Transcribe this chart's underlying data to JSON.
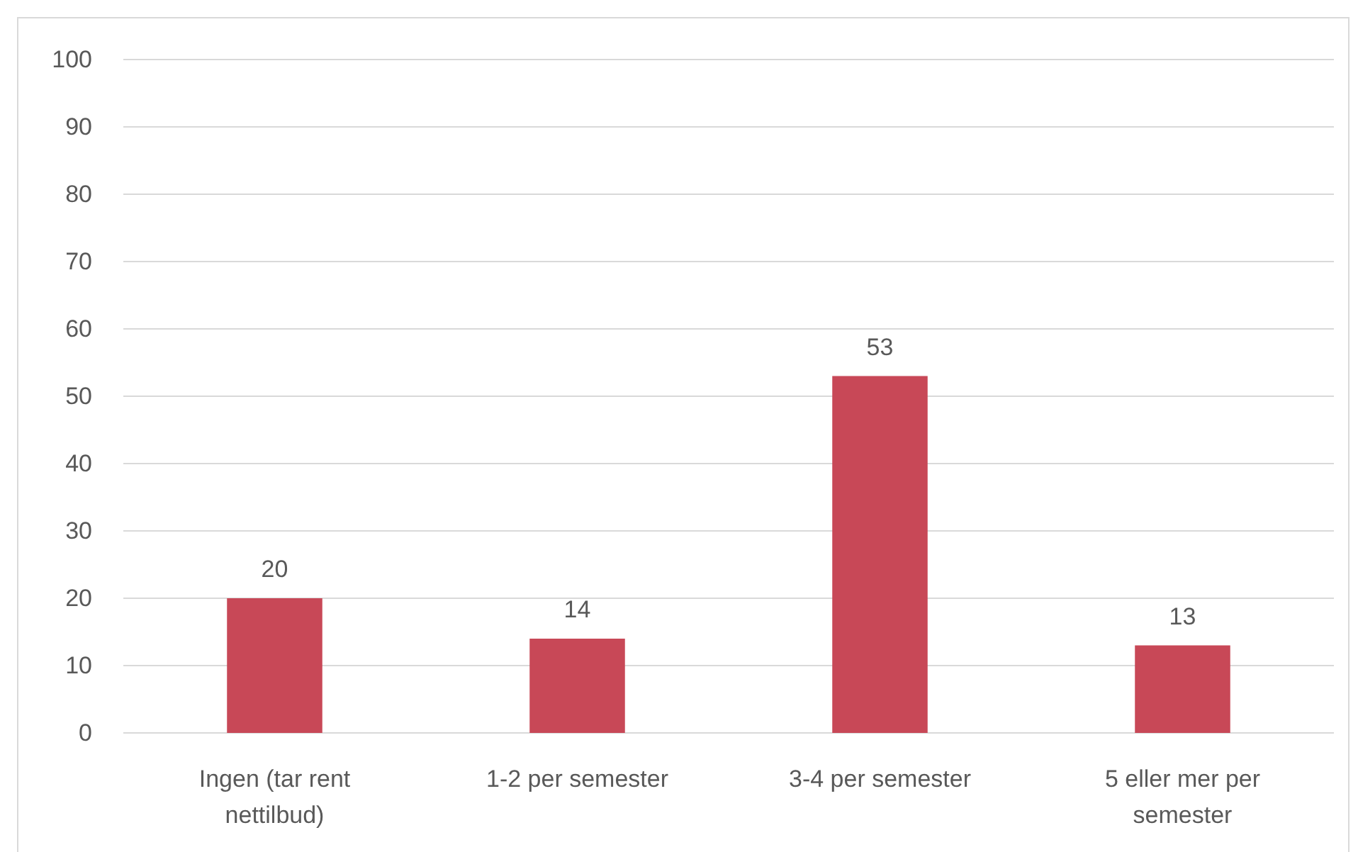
{
  "chart_data": {
    "type": "bar",
    "categories": [
      "Ingen (tar rent nettilbud)",
      "1-2 per semester",
      "3-4 per semester",
      "5 eller mer per semester"
    ],
    "values": [
      20,
      14,
      53,
      13
    ],
    "color": "#c84857",
    "ylim": [
      0,
      100
    ],
    "yticks": [
      0,
      10,
      20,
      30,
      40,
      50,
      60,
      70,
      80,
      90,
      100
    ],
    "grid": "y",
    "data_labels": true
  }
}
